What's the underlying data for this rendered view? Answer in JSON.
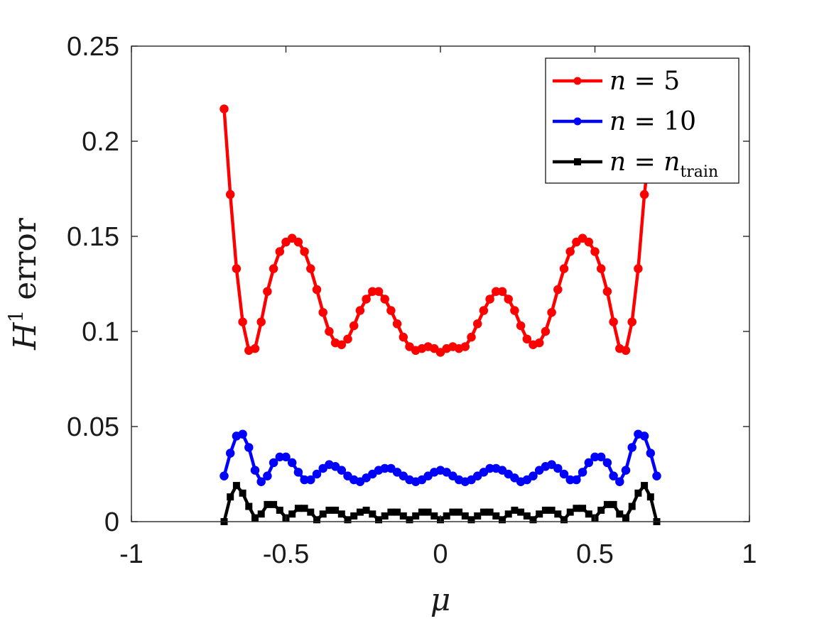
{
  "chart_data": {
    "type": "line",
    "xlabel": "μ",
    "ylabel": "H¹ error",
    "ylabel_base": "H",
    "ylabel_sup": "1",
    "ylabel_rest": "error",
    "xlim": [
      -1,
      1
    ],
    "ylim": [
      0,
      0.25
    ],
    "x_ticks": [
      -1,
      -0.5,
      0,
      0.5,
      1
    ],
    "x_tick_labels": [
      "-1",
      "-0.5",
      "0",
      "0.5",
      "1"
    ],
    "y_ticks": [
      0,
      0.05,
      0.1,
      0.15,
      0.2,
      0.25
    ],
    "y_tick_labels": [
      "0",
      "0.05",
      "0.1",
      "0.15",
      "0.2",
      "0.25"
    ],
    "grid": false,
    "legend_position": "top-right",
    "series": [
      {
        "name": "n = 5",
        "legend_var": "n",
        "legend_eq": " = ",
        "legend_val": "5",
        "legend_sub": "",
        "color": "#ff0000",
        "marker": "circle",
        "x": [
          -0.7,
          -0.68,
          -0.66,
          -0.64,
          -0.62,
          -0.6,
          -0.58,
          -0.56,
          -0.54,
          -0.52,
          -0.5,
          -0.48,
          -0.46,
          -0.44,
          -0.42,
          -0.4,
          -0.38,
          -0.36,
          -0.34,
          -0.32,
          -0.3,
          -0.28,
          -0.26,
          -0.24,
          -0.22,
          -0.2,
          -0.18,
          -0.16,
          -0.14,
          -0.12,
          -0.1,
          -0.08,
          -0.06,
          -0.04,
          -0.02,
          0,
          0.02,
          0.04,
          0.06,
          0.08,
          0.1,
          0.12,
          0.14,
          0.16,
          0.18,
          0.2,
          0.22,
          0.24,
          0.26,
          0.28,
          0.3,
          0.32,
          0.34,
          0.36,
          0.38,
          0.4,
          0.42,
          0.44,
          0.46,
          0.48,
          0.5,
          0.52,
          0.54,
          0.56,
          0.58,
          0.6,
          0.62,
          0.64,
          0.66,
          0.68,
          0.7
        ],
        "values": [
          0.217,
          0.172,
          0.133,
          0.105,
          0.09,
          0.091,
          0.105,
          0.121,
          0.133,
          0.142,
          0.147,
          0.149,
          0.147,
          0.142,
          0.133,
          0.122,
          0.11,
          0.1,
          0.094,
          0.093,
          0.096,
          0.103,
          0.111,
          0.117,
          0.121,
          0.121,
          0.117,
          0.111,
          0.104,
          0.097,
          0.092,
          0.09,
          0.091,
          0.092,
          0.091,
          0.089,
          0.091,
          0.092,
          0.091,
          0.092,
          0.097,
          0.104,
          0.111,
          0.117,
          0.121,
          0.121,
          0.117,
          0.111,
          0.103,
          0.096,
          0.093,
          0.094,
          0.1,
          0.11,
          0.122,
          0.133,
          0.142,
          0.147,
          0.149,
          0.147,
          0.142,
          0.133,
          0.121,
          0.105,
          0.091,
          0.09,
          0.105,
          0.133,
          0.172,
          0.2,
          0.217
        ]
      },
      {
        "name": "n = 10",
        "legend_var": "n",
        "legend_eq": " = ",
        "legend_val": "10",
        "legend_sub": "",
        "color": "#0000ff",
        "marker": "circle",
        "x": [
          -0.7,
          -0.68,
          -0.66,
          -0.64,
          -0.62,
          -0.6,
          -0.58,
          -0.56,
          -0.54,
          -0.52,
          -0.5,
          -0.48,
          -0.46,
          -0.44,
          -0.42,
          -0.4,
          -0.38,
          -0.36,
          -0.34,
          -0.32,
          -0.3,
          -0.28,
          -0.26,
          -0.24,
          -0.22,
          -0.2,
          -0.18,
          -0.16,
          -0.14,
          -0.12,
          -0.1,
          -0.08,
          -0.06,
          -0.04,
          -0.02,
          0,
          0.02,
          0.04,
          0.06,
          0.08,
          0.1,
          0.12,
          0.14,
          0.16,
          0.18,
          0.2,
          0.22,
          0.24,
          0.26,
          0.28,
          0.3,
          0.32,
          0.34,
          0.36,
          0.38,
          0.4,
          0.42,
          0.44,
          0.46,
          0.48,
          0.5,
          0.52,
          0.54,
          0.56,
          0.58,
          0.6,
          0.62,
          0.64,
          0.66,
          0.68,
          0.7
        ],
        "values": [
          0.024,
          0.036,
          0.045,
          0.046,
          0.039,
          0.027,
          0.021,
          0.024,
          0.031,
          0.034,
          0.034,
          0.031,
          0.026,
          0.022,
          0.022,
          0.025,
          0.028,
          0.03,
          0.029,
          0.027,
          0.024,
          0.022,
          0.021,
          0.023,
          0.025,
          0.027,
          0.028,
          0.028,
          0.026,
          0.024,
          0.022,
          0.021,
          0.022,
          0.024,
          0.026,
          0.027,
          0.026,
          0.024,
          0.022,
          0.021,
          0.022,
          0.024,
          0.026,
          0.028,
          0.028,
          0.027,
          0.025,
          0.023,
          0.021,
          0.022,
          0.024,
          0.027,
          0.029,
          0.03,
          0.028,
          0.025,
          0.022,
          0.022,
          0.026,
          0.031,
          0.034,
          0.034,
          0.031,
          0.024,
          0.021,
          0.027,
          0.039,
          0.046,
          0.045,
          0.036,
          0.024
        ]
      },
      {
        "name": "n = n_train",
        "legend_var": "n",
        "legend_eq": " = ",
        "legend_val": "n",
        "legend_sub": "train",
        "color": "#000000",
        "marker": "square",
        "x": [
          -0.7,
          -0.68,
          -0.66,
          -0.64,
          -0.62,
          -0.6,
          -0.58,
          -0.56,
          -0.54,
          -0.52,
          -0.5,
          -0.48,
          -0.46,
          -0.44,
          -0.42,
          -0.4,
          -0.38,
          -0.36,
          -0.34,
          -0.32,
          -0.3,
          -0.28,
          -0.26,
          -0.24,
          -0.22,
          -0.2,
          -0.18,
          -0.16,
          -0.14,
          -0.12,
          -0.1,
          -0.08,
          -0.06,
          -0.04,
          -0.02,
          0,
          0.02,
          0.04,
          0.06,
          0.08,
          0.1,
          0.12,
          0.14,
          0.16,
          0.18,
          0.2,
          0.22,
          0.24,
          0.26,
          0.28,
          0.3,
          0.32,
          0.34,
          0.36,
          0.38,
          0.4,
          0.42,
          0.44,
          0.46,
          0.48,
          0.5,
          0.52,
          0.54,
          0.56,
          0.58,
          0.6,
          0.62,
          0.64,
          0.66,
          0.68,
          0.7
        ],
        "values": [
          0.0,
          0.013,
          0.019,
          0.015,
          0.008,
          0.002,
          0.004,
          0.009,
          0.009,
          0.006,
          0.002,
          0.004,
          0.007,
          0.007,
          0.005,
          0.001,
          0.004,
          0.006,
          0.006,
          0.004,
          0.001,
          0.003,
          0.005,
          0.006,
          0.004,
          0.001,
          0.003,
          0.005,
          0.005,
          0.003,
          0.001,
          0.003,
          0.005,
          0.005,
          0.003,
          0.001,
          0.003,
          0.005,
          0.005,
          0.003,
          0.001,
          0.003,
          0.005,
          0.005,
          0.003,
          0.001,
          0.004,
          0.006,
          0.005,
          0.003,
          0.001,
          0.004,
          0.006,
          0.006,
          0.004,
          0.001,
          0.005,
          0.007,
          0.007,
          0.004,
          0.002,
          0.006,
          0.009,
          0.009,
          0.004,
          0.002,
          0.008,
          0.015,
          0.019,
          0.013,
          0.0
        ]
      }
    ]
  }
}
